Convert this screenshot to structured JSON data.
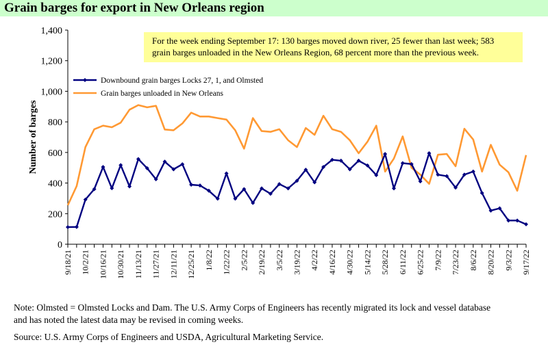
{
  "header": {
    "title": "Grain barges for export in New Orleans region"
  },
  "chart_data": {
    "type": "line",
    "ylabel": "Number of barges",
    "ylim": [
      0,
      1400
    ],
    "yticks": [
      "0",
      "200",
      "400",
      "600",
      "800",
      "1,000",
      "1,200",
      "1,400"
    ],
    "x_tick_labels": [
      "9/18/21",
      "10/2/21",
      "10/16/21",
      "10/30/21",
      "11/13/21",
      "11/27/21",
      "12/11/21",
      "12/25/21",
      "1/8/22",
      "1/22/22",
      "2/5/22",
      "2/19/22",
      "3/5/22",
      "3/19/22",
      "4/2/22",
      "4/16/22",
      "4/30/22",
      "5/14/22",
      "5/28/22",
      "6/11/22",
      "6/25/22",
      "7/9/22",
      "7/23/22",
      "8/6/22",
      "8/20/22",
      "9/3/22",
      "9/17/22"
    ],
    "x": [
      "9/18/21",
      "9/25/21",
      "10/2/21",
      "10/9/21",
      "10/16/21",
      "10/23/21",
      "10/30/21",
      "11/6/21",
      "11/13/21",
      "11/20/21",
      "11/27/21",
      "12/4/21",
      "12/11/21",
      "12/18/21",
      "12/25/21",
      "1/1/22",
      "1/8/22",
      "1/15/22",
      "1/22/22",
      "1/29/22",
      "2/5/22",
      "2/12/22",
      "2/19/22",
      "2/26/22",
      "3/5/22",
      "3/12/22",
      "3/19/22",
      "3/26/22",
      "4/2/22",
      "4/9/22",
      "4/16/22",
      "4/23/22",
      "4/30/22",
      "5/7/22",
      "5/14/22",
      "5/21/22",
      "5/28/22",
      "6/4/22",
      "6/11/22",
      "6/18/22",
      "6/25/22",
      "7/2/22",
      "7/9/22",
      "7/16/22",
      "7/23/22",
      "7/30/22",
      "8/6/22",
      "8/13/22",
      "8/20/22",
      "8/27/22",
      "9/3/22",
      "9/10/22",
      "9/17/22"
    ],
    "series": [
      {
        "name": "Downbound grain barges Locks 27, 1, and Olmsted",
        "color": "#000080",
        "marker": "diamond",
        "values": [
          112,
          113,
          292,
          360,
          505,
          366,
          517,
          378,
          557,
          497,
          425,
          540,
          490,
          523,
          389,
          384,
          350,
          298,
          463,
          298,
          360,
          270,
          365,
          330,
          393,
          365,
          415,
          487,
          405,
          505,
          552,
          546,
          490,
          546,
          515,
          452,
          590,
          365,
          530,
          524,
          411,
          595,
          455,
          445,
          370,
          455,
          475,
          335,
          220,
          235,
          155,
          155,
          130
        ]
      },
      {
        "name": "Grain barges unloaded in New Orleans",
        "color": "#ff9933",
        "values": [
          255,
          380,
          635,
          752,
          775,
          765,
          795,
          880,
          910,
          895,
          905,
          750,
          745,
          790,
          860,
          835,
          835,
          825,
          815,
          745,
          625,
          825,
          740,
          735,
          752,
          680,
          635,
          760,
          715,
          840,
          752,
          735,
          680,
          595,
          670,
          775,
          475,
          560,
          705,
          500,
          455,
          395,
          585,
          590,
          510,
          755,
          685,
          475,
          650,
          520,
          470,
          350,
          583
        ]
      }
    ],
    "legend_position": "top-left",
    "annotation": "For the week ending September 17: 130 barges moved down river, 25 fewer than last week; 583 grain barges unloaded in the New Orleans Region, 68 percent more than the previous week."
  },
  "notes": {
    "line1": "Note: Olmsted = Olmsted Locks and Dam. The U.S. Army Corps of Engineers has recently migrated its lock and vessel database",
    "line2": "and has noted the latest data may be revised in coming weeks.",
    "source": "Source:  U.S. Army Corps of Engineers and USDA, Agricultural Marketing Service."
  }
}
